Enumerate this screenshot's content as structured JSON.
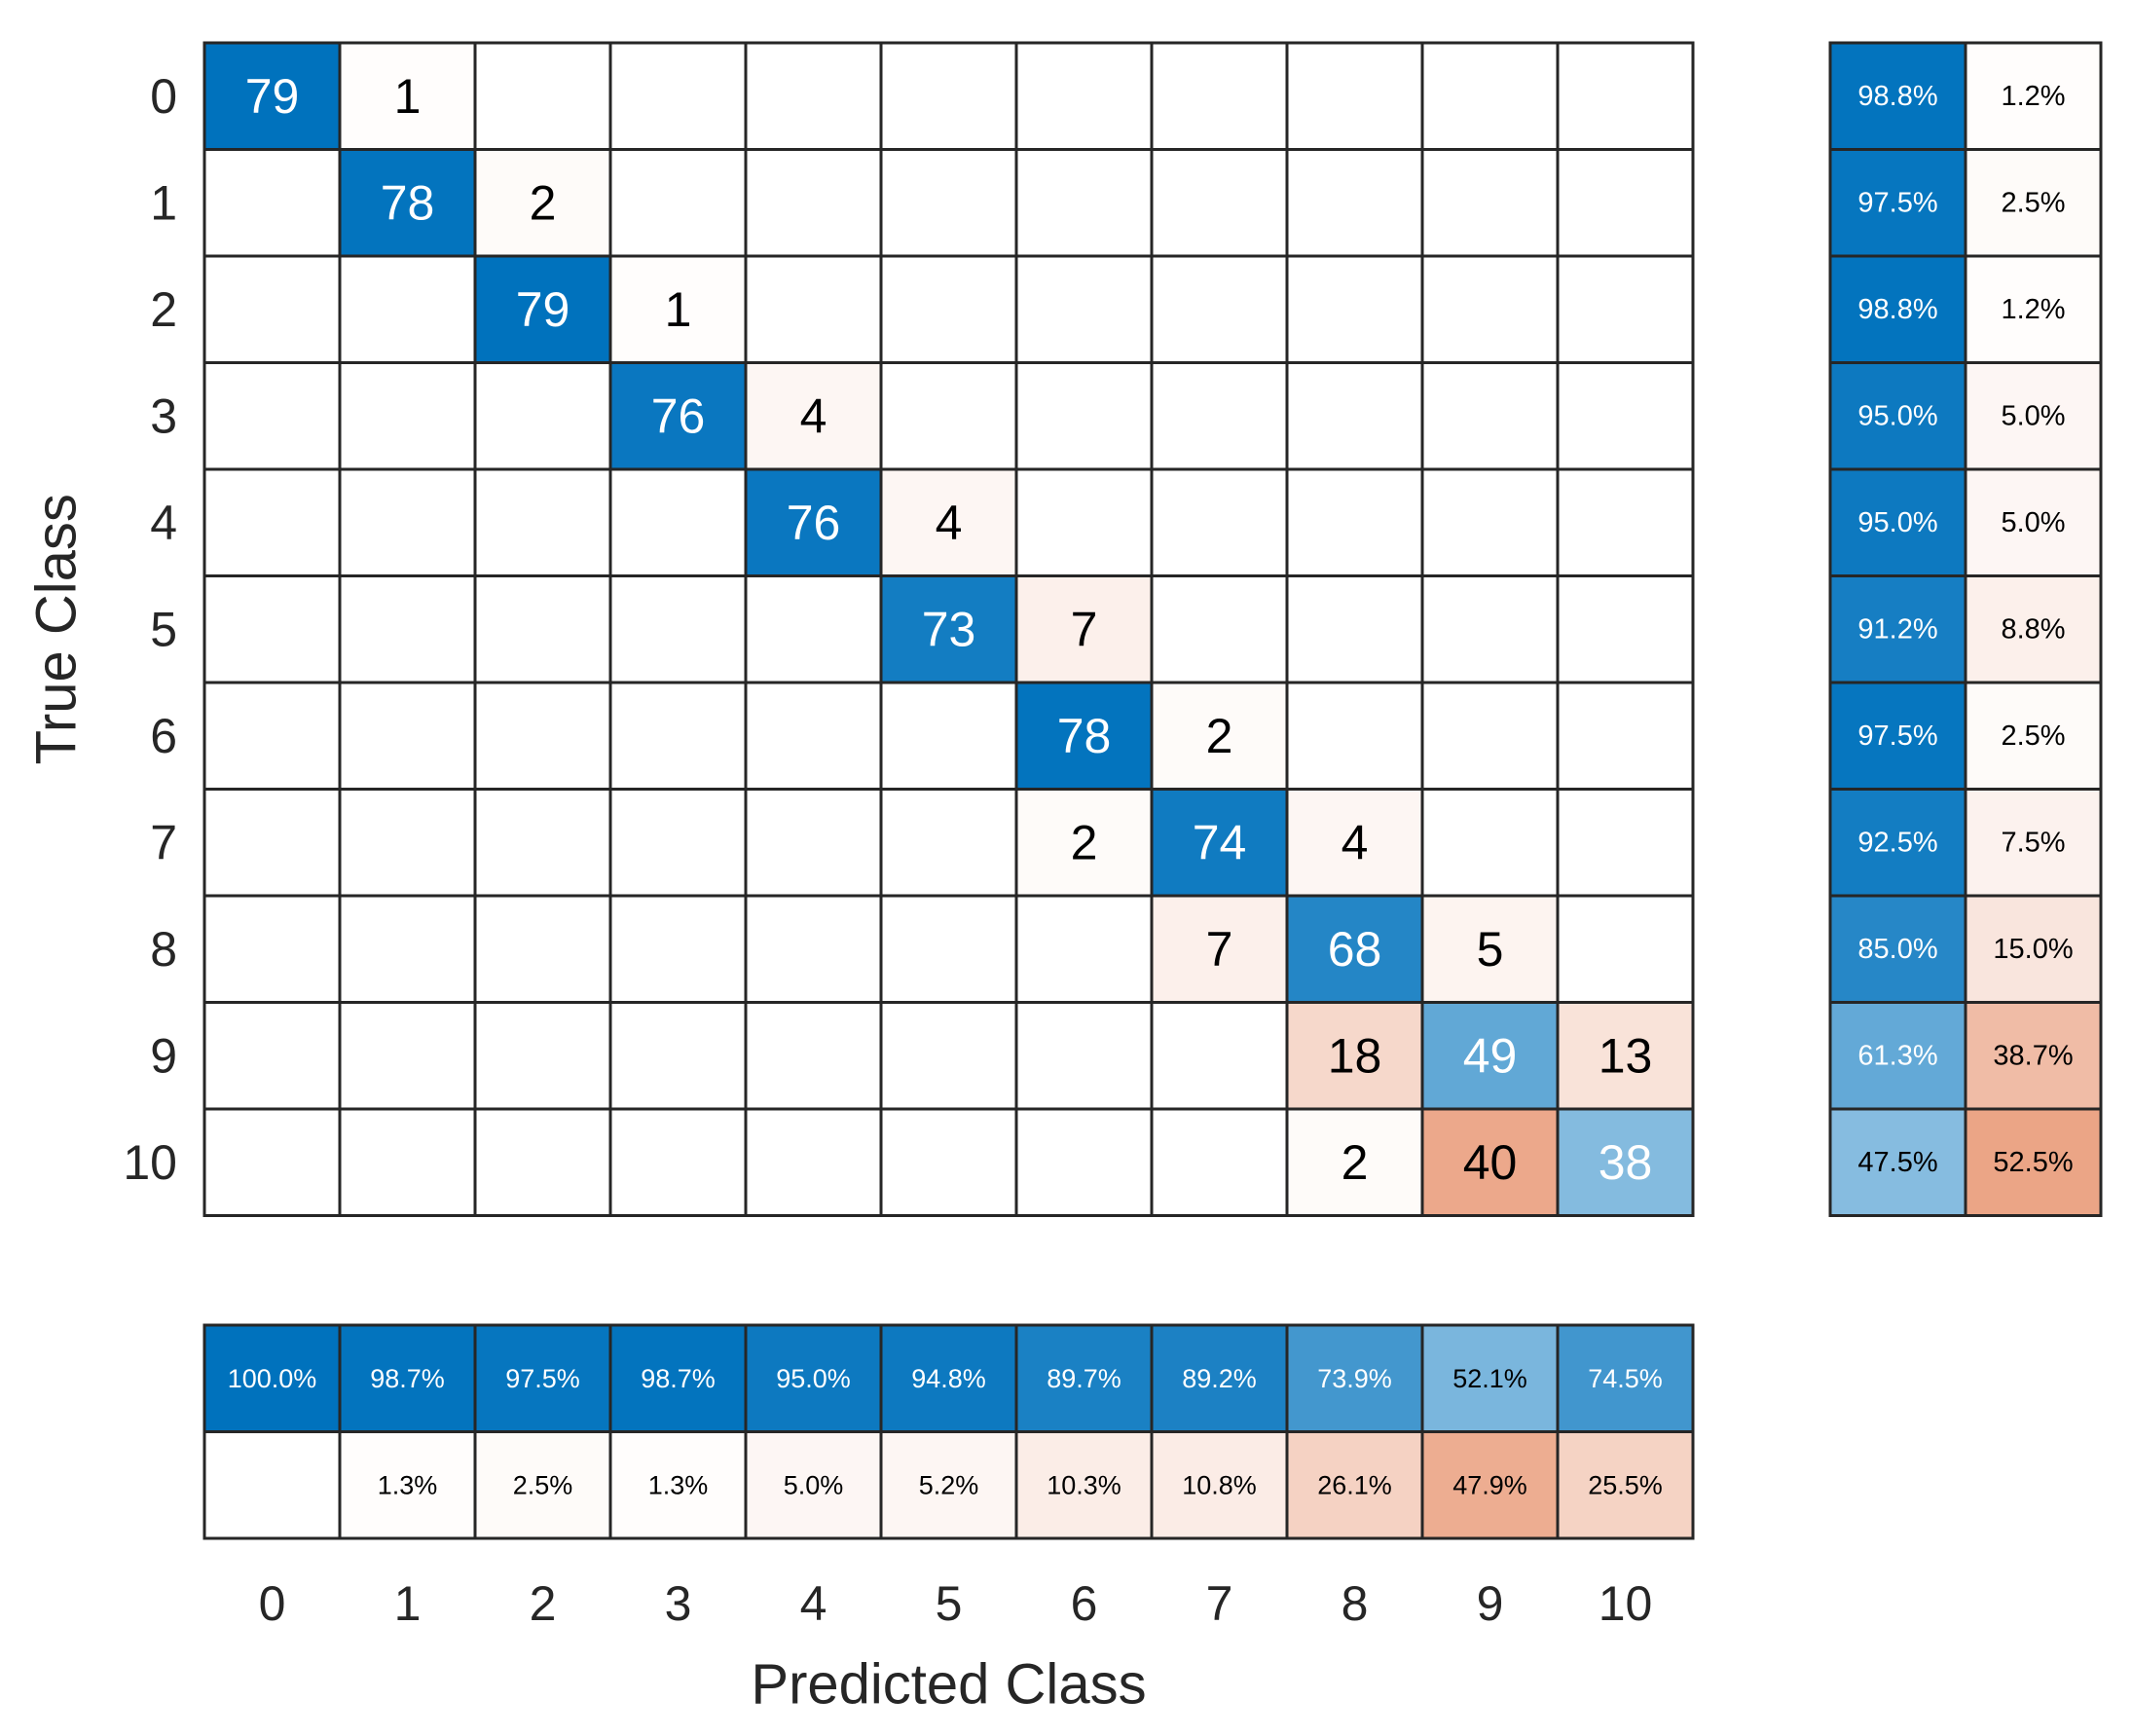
{
  "chart_data": {
    "type": "heatmap",
    "xlabel": "Predicted Class",
    "ylabel": "True Class",
    "classes": [
      "0",
      "1",
      "2",
      "3",
      "4",
      "5",
      "6",
      "7",
      "8",
      "9",
      "10"
    ],
    "matrix": [
      [
        79,
        1,
        0,
        0,
        0,
        0,
        0,
        0,
        0,
        0,
        0
      ],
      [
        0,
        78,
        2,
        0,
        0,
        0,
        0,
        0,
        0,
        0,
        0
      ],
      [
        0,
        0,
        79,
        1,
        0,
        0,
        0,
        0,
        0,
        0,
        0
      ],
      [
        0,
        0,
        0,
        76,
        4,
        0,
        0,
        0,
        0,
        0,
        0
      ],
      [
        0,
        0,
        0,
        0,
        76,
        4,
        0,
        0,
        0,
        0,
        0
      ],
      [
        0,
        0,
        0,
        0,
        0,
        73,
        7,
        0,
        0,
        0,
        0
      ],
      [
        0,
        0,
        0,
        0,
        0,
        0,
        78,
        2,
        0,
        0,
        0
      ],
      [
        0,
        0,
        0,
        0,
        0,
        0,
        2,
        74,
        4,
        0,
        0
      ],
      [
        0,
        0,
        0,
        0,
        0,
        0,
        0,
        7,
        68,
        5,
        0
      ],
      [
        0,
        0,
        0,
        0,
        0,
        0,
        0,
        0,
        18,
        49,
        13
      ],
      [
        0,
        0,
        0,
        0,
        0,
        0,
        0,
        0,
        2,
        40,
        38
      ]
    ],
    "row_summary": {
      "correct": [
        "98.8%",
        "97.5%",
        "98.8%",
        "95.0%",
        "95.0%",
        "91.2%",
        "97.5%",
        "92.5%",
        "85.0%",
        "61.3%",
        "47.5%"
      ],
      "incorrect": [
        "1.2%",
        "2.5%",
        "1.2%",
        "5.0%",
        "5.0%",
        "8.8%",
        "2.5%",
        "7.5%",
        "15.0%",
        "38.7%",
        "52.5%"
      ]
    },
    "column_summary": {
      "correct": [
        "100.0%",
        "98.7%",
        "97.5%",
        "98.7%",
        "95.0%",
        "94.8%",
        "89.7%",
        "89.2%",
        "73.9%",
        "52.1%",
        "74.5%"
      ],
      "incorrect": [
        "",
        "1.3%",
        "2.5%",
        "1.3%",
        "5.0%",
        "5.2%",
        "10.3%",
        "10.8%",
        "26.1%",
        "47.9%",
        "25.5%"
      ]
    },
    "colors": {
      "correct_max": "#0072bd",
      "incorrect_max": "#d95319",
      "cell_min": "#ffffff",
      "grid": "#262626",
      "text_dark": "#000000",
      "text_light": "#ffffff"
    },
    "grid": true
  }
}
